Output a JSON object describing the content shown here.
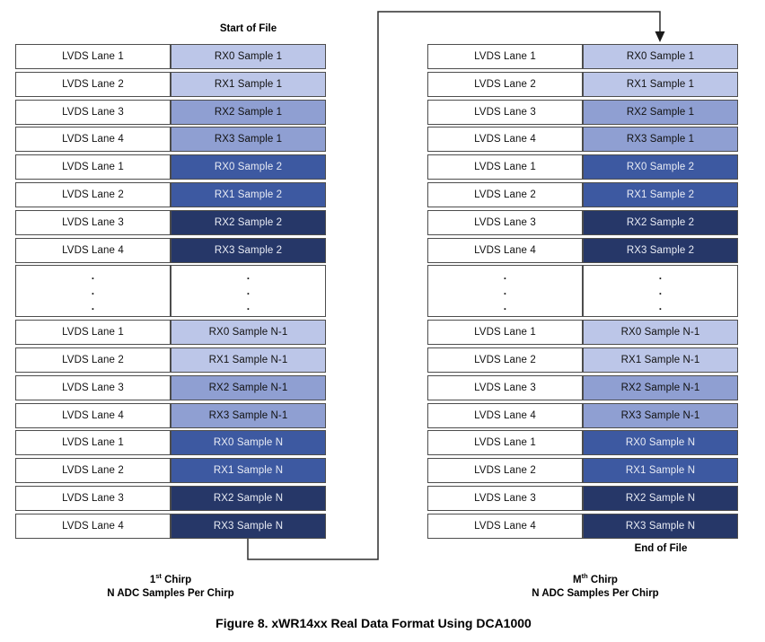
{
  "figure_caption": "Figure 8. xWR14xx Real Data Format Using DCA1000",
  "labels": {
    "start_of_file": "Start of File",
    "end_of_file": "End of File"
  },
  "captions": {
    "left": {
      "ordinal_base": "1",
      "ordinal_sup": "st",
      "chirp_suffix": " Chirp",
      "line2": "N ADC Samples Per Chirp"
    },
    "right": {
      "ordinal_base": "M",
      "ordinal_sup": "th",
      "chirp_suffix": " Chirp",
      "line2": "N ADC Samples Per Chirp"
    }
  },
  "colors": {
    "shade_light": "#bcc6e8",
    "shade_medium": "#8f9fd2",
    "shade_dark": "#3d59a1",
    "shade_navy": "#263768",
    "light_text": "#e9ecf5",
    "dark_text": "#111111",
    "cell_border": "#4d4d4d",
    "connector": "#2e2e2e"
  },
  "dots_symbol": ".",
  "tables": {
    "left": {
      "rows": [
        {
          "lane": "LVDS Lane 1",
          "rx": "RX0 Sample 1",
          "shade": "light"
        },
        {
          "lane": "LVDS Lane 2",
          "rx": "RX1 Sample 1",
          "shade": "light"
        },
        {
          "lane": "LVDS Lane 3",
          "rx": "RX2 Sample 1",
          "shade": "medium"
        },
        {
          "lane": "LVDS Lane 4",
          "rx": "RX3 Sample 1",
          "shade": "medium"
        },
        {
          "lane": "LVDS Lane 1",
          "rx": "RX0 Sample 2",
          "shade": "dark"
        },
        {
          "lane": "LVDS Lane 2",
          "rx": "RX1 Sample 2",
          "shade": "dark"
        },
        {
          "lane": "LVDS Lane 3",
          "rx": "RX2 Sample 2",
          "shade": "navy"
        },
        {
          "lane": "LVDS Lane 4",
          "rx": "RX3 Sample 2",
          "shade": "navy"
        },
        {
          "type": "dots"
        },
        {
          "lane": "LVDS Lane 1",
          "rx": "RX0 Sample N-1",
          "shade": "light"
        },
        {
          "lane": "LVDS Lane 2",
          "rx": "RX1 Sample N-1",
          "shade": "light"
        },
        {
          "lane": "LVDS Lane 3",
          "rx": "RX2 Sample N-1",
          "shade": "medium"
        },
        {
          "lane": "LVDS Lane 4",
          "rx": "RX3 Sample N-1",
          "shade": "medium"
        },
        {
          "lane": "LVDS Lane 1",
          "rx": "RX0 Sample N",
          "shade": "dark"
        },
        {
          "lane": "LVDS Lane 2",
          "rx": "RX1 Sample N",
          "shade": "dark"
        },
        {
          "lane": "LVDS Lane 3",
          "rx": "RX2 Sample N",
          "shade": "navy"
        },
        {
          "lane": "LVDS Lane 4",
          "rx": "RX3 Sample N",
          "shade": "navy"
        }
      ]
    },
    "right": {
      "rows": [
        {
          "lane": "LVDS Lane 1",
          "rx": "RX0 Sample 1",
          "shade": "light"
        },
        {
          "lane": "LVDS Lane 2",
          "rx": "RX1 Sample 1",
          "shade": "light"
        },
        {
          "lane": "LVDS Lane 3",
          "rx": "RX2 Sample 1",
          "shade": "medium"
        },
        {
          "lane": "LVDS Lane 4",
          "rx": "RX3 Sample 1",
          "shade": "medium"
        },
        {
          "lane": "LVDS Lane 1",
          "rx": "RX0 Sample 2",
          "shade": "dark"
        },
        {
          "lane": "LVDS Lane 2",
          "rx": "RX1 Sample 2",
          "shade": "dark"
        },
        {
          "lane": "LVDS Lane 3",
          "rx": "RX2 Sample 2",
          "shade": "navy"
        },
        {
          "lane": "LVDS Lane 4",
          "rx": "RX3 Sample 2",
          "shade": "navy"
        },
        {
          "type": "dots"
        },
        {
          "lane": "LVDS Lane 1",
          "rx": "RX0 Sample N-1",
          "shade": "light"
        },
        {
          "lane": "LVDS Lane 2",
          "rx": "RX1 Sample N-1",
          "shade": "light"
        },
        {
          "lane": "LVDS Lane 3",
          "rx": "RX2 Sample N-1",
          "shade": "medium"
        },
        {
          "lane": "LVDS Lane 4",
          "rx": "RX3 Sample N-1",
          "shade": "medium"
        },
        {
          "lane": "LVDS Lane 1",
          "rx": "RX0 Sample N",
          "shade": "dark"
        },
        {
          "lane": "LVDS Lane 2",
          "rx": "RX1 Sample N",
          "shade": "dark"
        },
        {
          "lane": "LVDS Lane 3",
          "rx": "RX2 Sample N",
          "shade": "navy"
        },
        {
          "lane": "LVDS Lane 4",
          "rx": "RX3 Sample N",
          "shade": "navy"
        }
      ]
    }
  }
}
